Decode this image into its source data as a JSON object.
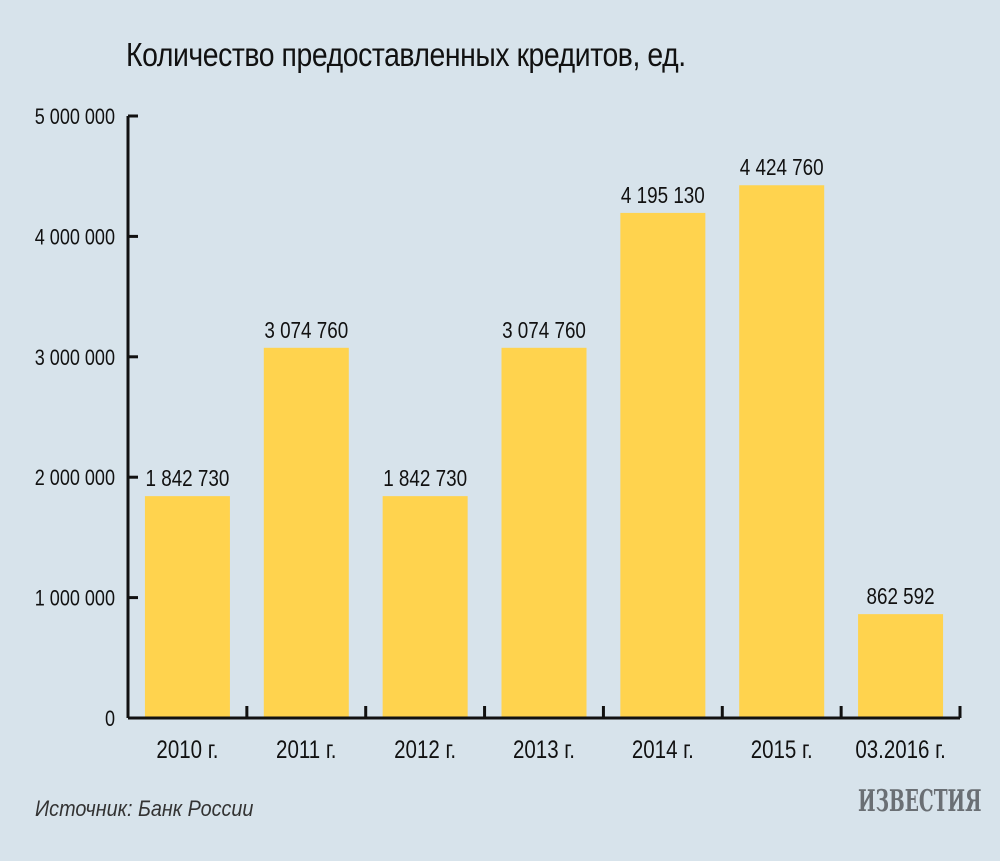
{
  "title": "Количество предоставленных кредитов, ед.",
  "source": "Источник: Банк России",
  "logo_text": "ИЗВЕСТИЯ",
  "colors": {
    "background": "#d7e3eb",
    "bar": "#ffd34e",
    "axis": "#111111"
  },
  "chart_data": {
    "type": "bar",
    "title": "Количество предоставленных кредитов, ед.",
    "categories": [
      "2010 г.",
      "2011 г.",
      "2012 г.",
      "2013 г.",
      "2014 г.",
      "2015 г.",
      "03.2016 г."
    ],
    "values": [
      1842730,
      3074760,
      1842730,
      3074760,
      4195130,
      4424760,
      862592
    ],
    "data_labels": [
      "1 842 730",
      "3 074 760",
      "1 842 730",
      "3 074 760",
      "4 195 130",
      "4 424 760",
      "862 592"
    ],
    "ylim": [
      0,
      5000000
    ],
    "yticks": [
      0,
      1000000,
      2000000,
      3000000,
      4000000,
      5000000
    ],
    "ytick_labels": [
      "0",
      "1 000 000",
      "2 000 000",
      "3 000 000",
      "4 000 000",
      "5 000 000"
    ],
    "xlabel": "",
    "ylabel": "",
    "grid": false,
    "legend": "none"
  }
}
